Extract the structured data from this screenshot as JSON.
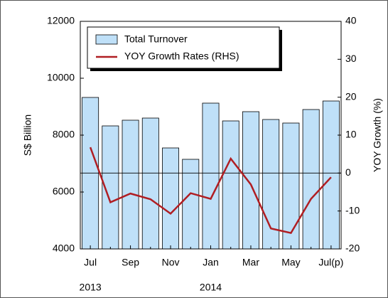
{
  "chart_data": {
    "type": "bar-line",
    "ylabel": "S$ Billion",
    "y2label": "YOY Growth (%)",
    "categories": [
      "Jul",
      null,
      "Sep",
      null,
      "Nov",
      null,
      "Jan",
      null,
      "Mar",
      null,
      "May",
      null,
      "Jul(p)"
    ],
    "annotations": [
      "2013",
      "2014"
    ],
    "series": [
      {
        "name": "Total Turnover",
        "type": "bar",
        "color": "#bfe0f8",
        "values": [
          9325,
          8325,
          8525,
          8600,
          7550,
          7150,
          9125,
          8500,
          8825,
          8550,
          8425,
          8900,
          9200
        ]
      },
      {
        "name": "YOY Growth Rates (RHS)",
        "type": "line",
        "axis": "y2",
        "color": "#b01e23",
        "values": [
          6.8,
          -7.7,
          -5.4,
          -6.9,
          -10.7,
          -5.3,
          -6.8,
          3.8,
          -3,
          -14.6,
          -15.8,
          -6.8,
          -1.1
        ]
      }
    ],
    "ylim": [
      4000,
      12000
    ],
    "yticks": [
      4000,
      6000,
      8000,
      10000,
      12000
    ],
    "y2lim": [
      -20,
      40
    ],
    "y2ticks": [
      -20,
      -10,
      0,
      10,
      20,
      30,
      40
    ],
    "legend": "upper left"
  }
}
